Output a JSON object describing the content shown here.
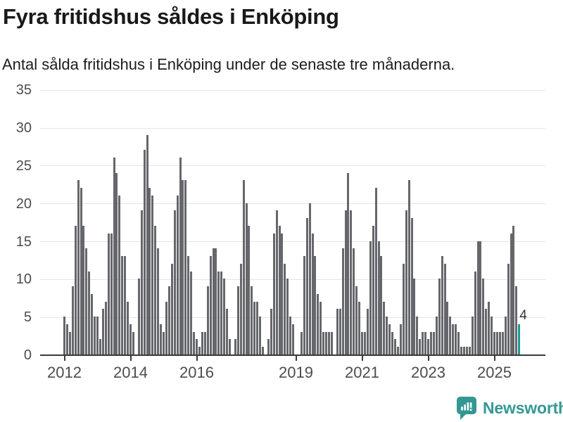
{
  "title": "Fyra fritidshus såldes i Enköping",
  "subtitle": "Antal sålda fritidshus i Enköping under de senaste tre månaderna.",
  "annotation": {
    "label": "4"
  },
  "logo": {
    "text": "Newsworthy",
    "icon": "newsworthy-speech-bubble-bar-chart-icon"
  },
  "colors": {
    "bar": "#66676c",
    "highlight": "#189c95",
    "grid": "#e4e4e4",
    "axis": "#3a3a3a",
    "tick_label": "#4d4d4d",
    "title_text": "#191919",
    "logo": "#349892",
    "background": "#ffffff"
  },
  "chart_data": {
    "type": "bar",
    "title": "Fyra fritidshus såldes i Enköping",
    "subtitle": "Antal sålda fritidshus i Enköping under de senaste tre månaderna.",
    "x_start": "2012-01",
    "x_end": "2025-10",
    "ylim": [
      0,
      35
    ],
    "y_ticks": [
      0,
      5,
      10,
      15,
      20,
      25,
      30,
      35
    ],
    "x_tick_labels": [
      "2012",
      "2014",
      "2016",
      "2019",
      "2021",
      "2023",
      "2025"
    ],
    "grid": true,
    "legend": false,
    "highlight_last_value": 4,
    "highlight_label": "4",
    "series": [
      {
        "year": 2012,
        "values": [
          5,
          4,
          3,
          9,
          17,
          23,
          22,
          17,
          14,
          11,
          8,
          5
        ]
      },
      {
        "year": 2013,
        "values": [
          5,
          2,
          6,
          7,
          16,
          16,
          26,
          24,
          21,
          13,
          13,
          7
        ]
      },
      {
        "year": 2014,
        "values": [
          4,
          3,
          0,
          10,
          19,
          27,
          29,
          22,
          21,
          17,
          14,
          4
        ]
      },
      {
        "year": 2015,
        "values": [
          3,
          7,
          9,
          12,
          19,
          21,
          26,
          23,
          23,
          13,
          11,
          3
        ]
      },
      {
        "year": 2016,
        "values": [
          2,
          1,
          3,
          3,
          9,
          13,
          14,
          14,
          11,
          11,
          10,
          6
        ]
      },
      {
        "year": 2017,
        "values": [
          2,
          0,
          2,
          9,
          12,
          23,
          20,
          17,
          9,
          7,
          7,
          5
        ]
      },
      {
        "year": 2018,
        "values": [
          1,
          0,
          2,
          6,
          16,
          19,
          17,
          16,
          12,
          10,
          5,
          4
        ]
      },
      {
        "year": 2019,
        "values": [
          0,
          0,
          3,
          13,
          18,
          20,
          16,
          13,
          8,
          7,
          3,
          3
        ]
      },
      {
        "year": 2020,
        "values": [
          3,
          3,
          0,
          6,
          6,
          14,
          19,
          24,
          19,
          14,
          9,
          7
        ]
      },
      {
        "year": 2021,
        "values": [
          3,
          3,
          6,
          15,
          17,
          22,
          15,
          13,
          7,
          5,
          4,
          3
        ]
      },
      {
        "year": 2022,
        "values": [
          2,
          1,
          4,
          12,
          19,
          23,
          18,
          10,
          5,
          2,
          3,
          3
        ]
      },
      {
        "year": 2023,
        "values": [
          2,
          3,
          3,
          5,
          10,
          13,
          12,
          7,
          5,
          4,
          4,
          3
        ]
      },
      {
        "year": 2024,
        "values": [
          1,
          1,
          1,
          1,
          5,
          11,
          15,
          15,
          10,
          6,
          7,
          5
        ]
      },
      {
        "year": 2025,
        "values": [
          3,
          3,
          3,
          3,
          5,
          12,
          16,
          17,
          9,
          4
        ]
      }
    ]
  }
}
